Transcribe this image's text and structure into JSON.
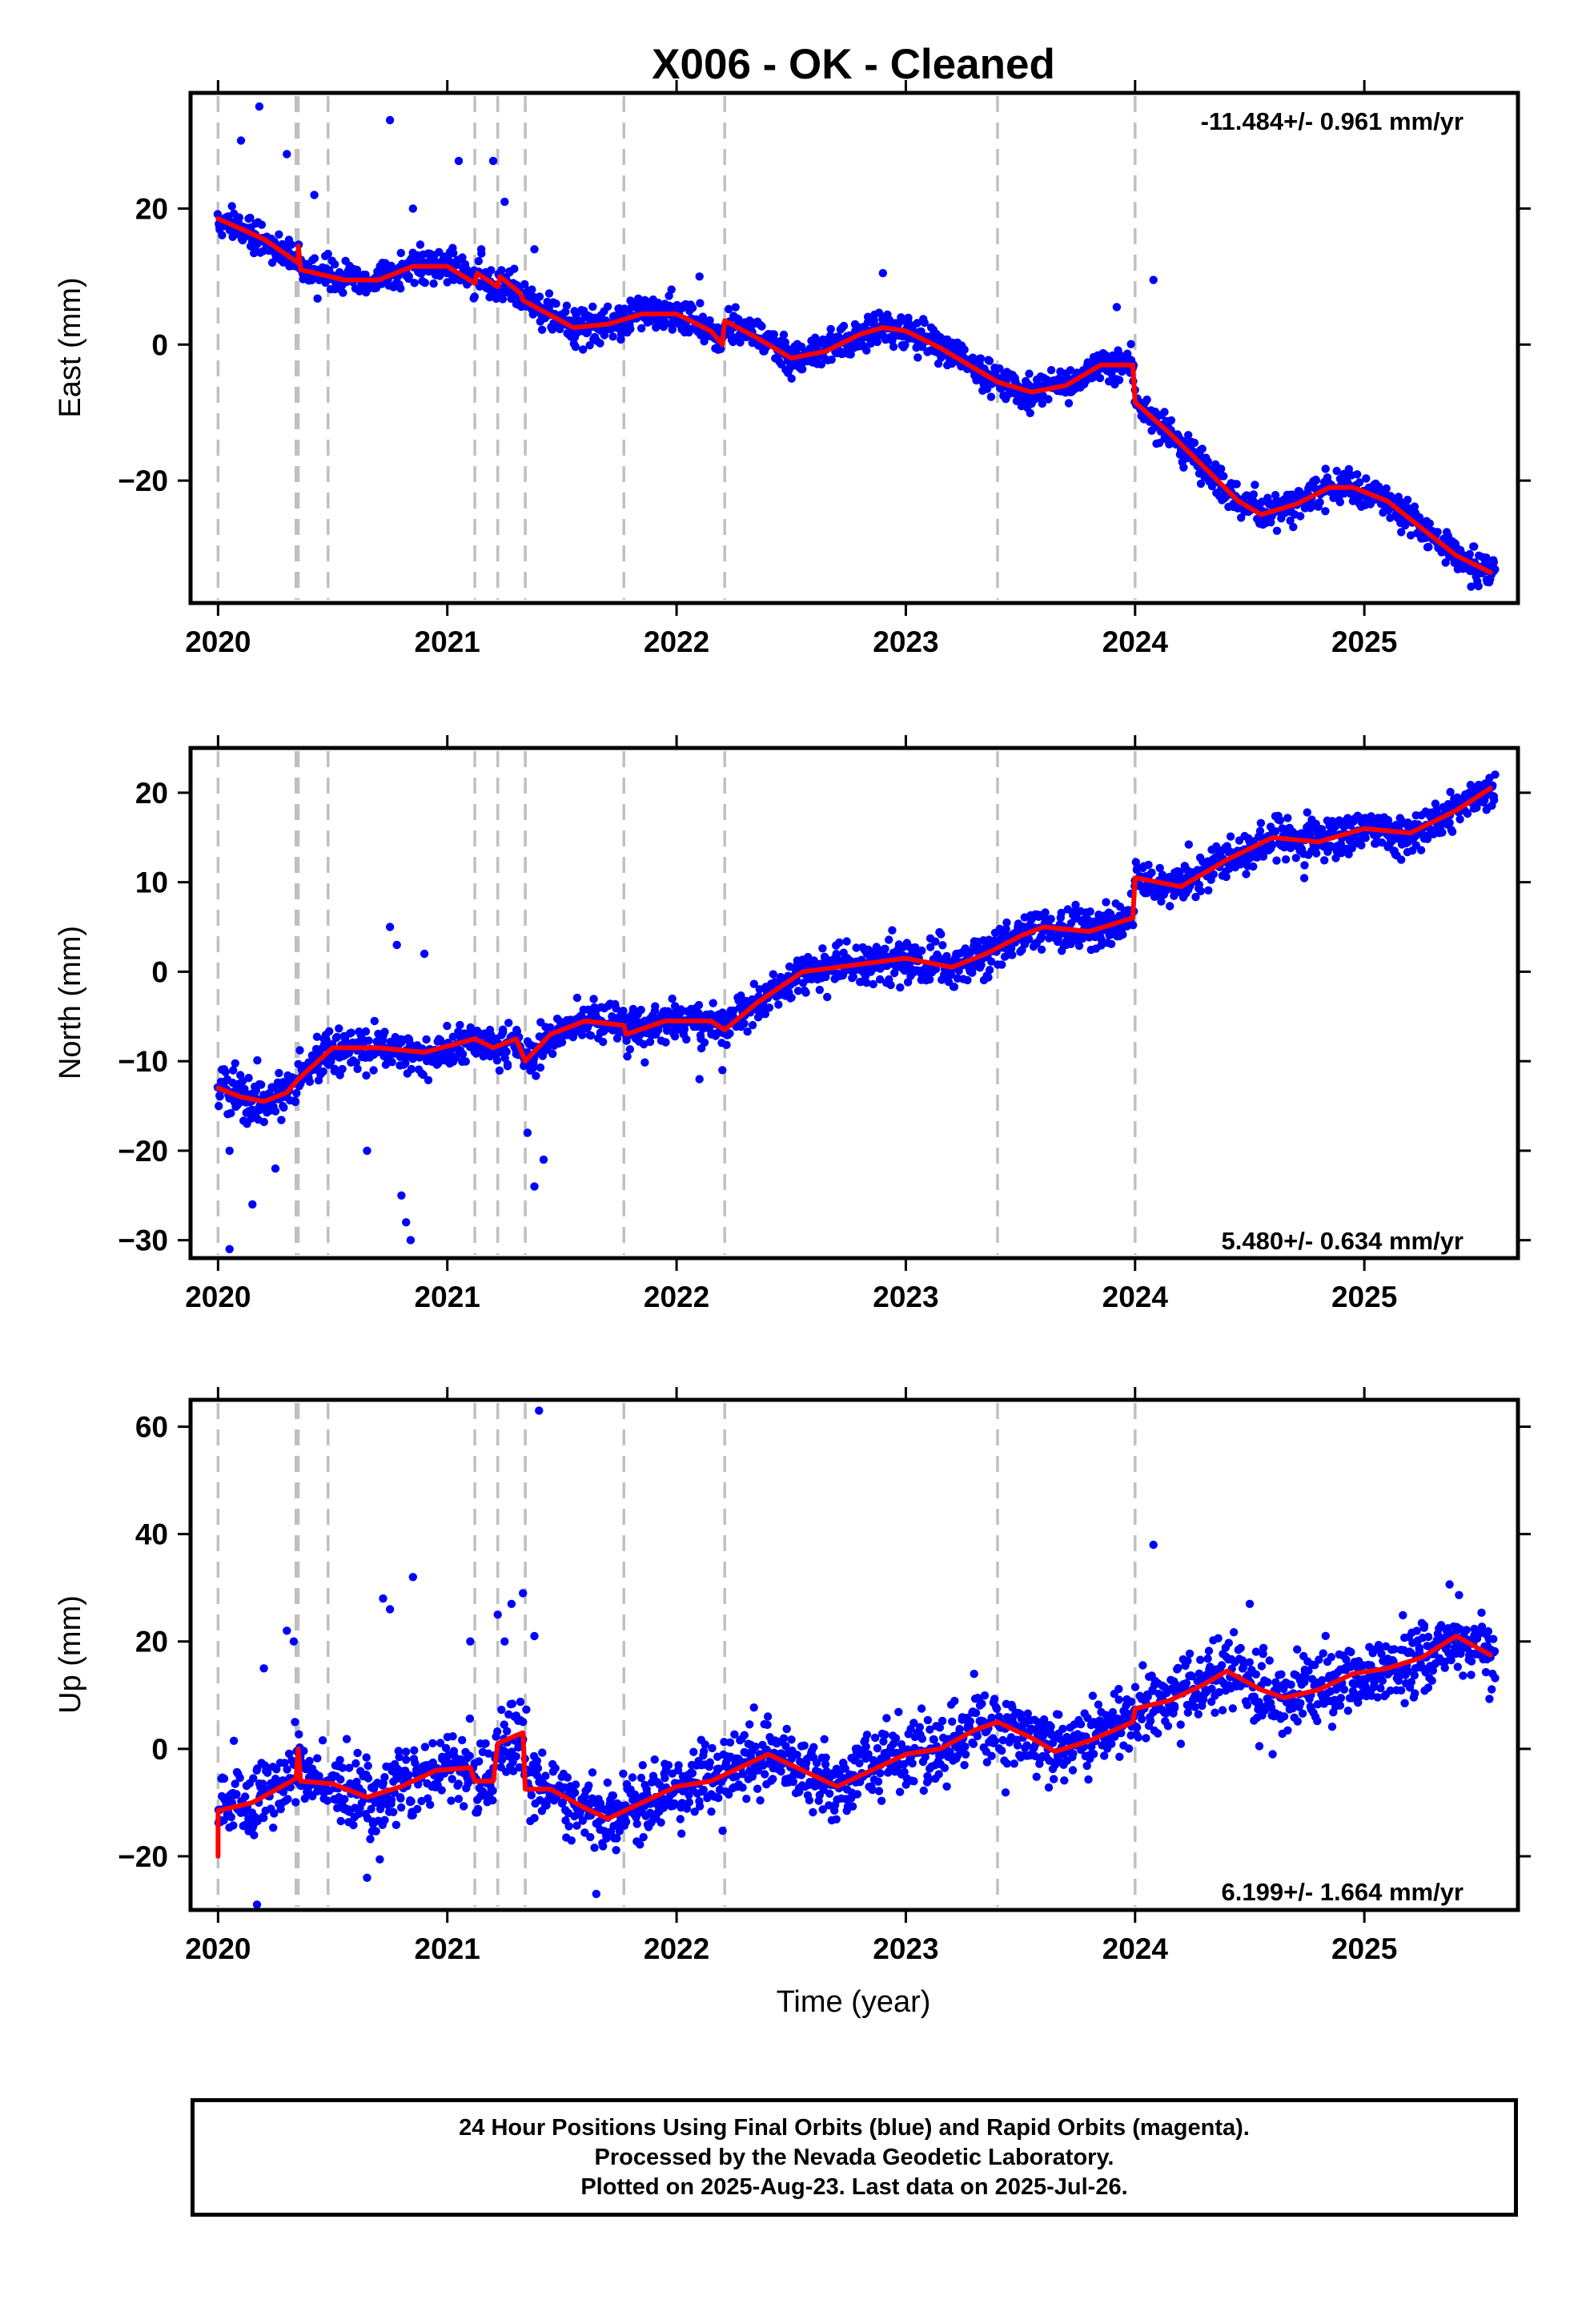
{
  "title": "X006  - OK - Cleaned",
  "chart_data": [
    {
      "type": "scatter",
      "component": "east",
      "ylabel": "East (mm)",
      "xlabel": "",
      "xlim": [
        2019.88,
        2025.67
      ],
      "ylim": [
        -38,
        37
      ],
      "xticks": [
        2020,
        2021,
        2022,
        2023,
        2024,
        2025
      ],
      "yticks": [
        -20,
        0,
        20
      ],
      "rate_label": "-11.484+/- 0.961 mm/yr",
      "rate_position": "top-right",
      "colors": {
        "points": "#0000ff",
        "model": "#ff0000",
        "breaks": "#c0c0c0"
      },
      "model": [
        [
          2020.0,
          18.5
        ],
        [
          2020.2,
          15.5
        ],
        [
          2020.35,
          12
        ],
        [
          2020.35,
          14.5
        ],
        [
          2020.36,
          11
        ],
        [
          2020.55,
          9.5
        ],
        [
          2020.7,
          9.5
        ],
        [
          2020.85,
          11.5
        ],
        [
          2021.0,
          11.5
        ],
        [
          2021.12,
          9
        ],
        [
          2021.13,
          10.5
        ],
        [
          2021.22,
          8.5
        ],
        [
          2021.23,
          10
        ],
        [
          2021.32,
          7.5
        ],
        [
          2021.33,
          6.5
        ],
        [
          2021.55,
          2.5
        ],
        [
          2021.7,
          3
        ],
        [
          2021.85,
          4.5
        ],
        [
          2022.0,
          4.5
        ],
        [
          2022.15,
          2
        ],
        [
          2022.2,
          0
        ],
        [
          2022.21,
          3.5
        ],
        [
          2022.35,
          1
        ],
        [
          2022.5,
          -2
        ],
        [
          2022.65,
          -1
        ],
        [
          2022.8,
          1.5
        ],
        [
          2022.9,
          2.5
        ],
        [
          2023.0,
          2
        ],
        [
          2023.15,
          -0.5
        ],
        [
          2023.3,
          -3.5
        ],
        [
          2023.4,
          -5.5
        ],
        [
          2023.55,
          -7
        ],
        [
          2023.7,
          -6
        ],
        [
          2023.85,
          -3
        ],
        [
          2023.99,
          -3
        ],
        [
          2024.0,
          -8.5
        ],
        [
          2024.15,
          -13
        ],
        [
          2024.3,
          -18
        ],
        [
          2024.45,
          -23
        ],
        [
          2024.55,
          -25
        ],
        [
          2024.7,
          -23.5
        ],
        [
          2024.85,
          -21
        ],
        [
          2024.95,
          -21
        ],
        [
          2025.1,
          -23
        ],
        [
          2025.25,
          -27
        ],
        [
          2025.4,
          -31
        ],
        [
          2025.55,
          -33.5
        ]
      ],
      "data_points": {
        "seed": 101,
        "n": 1900,
        "scatter_sd": 1.2,
        "outliers": [
          [
            2020.1,
            30
          ],
          [
            2020.18,
            35
          ],
          [
            2020.3,
            28
          ],
          [
            2020.42,
            22
          ],
          [
            2020.75,
            33
          ],
          [
            2020.85,
            20
          ],
          [
            2021.05,
            27
          ],
          [
            2021.2,
            27
          ],
          [
            2021.25,
            21
          ],
          [
            2021.38,
            14
          ],
          [
            2022.1,
            10
          ],
          [
            2022.9,
            10.5
          ],
          [
            2024.08,
            9.5
          ],
          [
            2023.92,
            5.5
          ]
        ]
      },
      "breaks": [
        2020.0,
        2020.34,
        2020.35,
        2020.48,
        2021.12,
        2021.22,
        2021.34,
        2021.77,
        2022.21,
        2023.4,
        2024.0
      ]
    },
    {
      "type": "scatter",
      "component": "north",
      "ylabel": "North (mm)",
      "xlabel": "",
      "xlim": [
        2019.88,
        2025.67
      ],
      "ylim": [
        -32,
        25
      ],
      "xticks": [
        2020,
        2021,
        2022,
        2023,
        2024,
        2025
      ],
      "yticks": [
        -30,
        -20,
        -10,
        0,
        10,
        20
      ],
      "rate_label": "5.480+/- 0.634 mm/yr",
      "rate_position": "bottom-right",
      "colors": {
        "points": "#0000ff",
        "model": "#ff0000",
        "breaks": "#c0c0c0"
      },
      "model": [
        [
          2020.0,
          -13
        ],
        [
          2020.1,
          -14
        ],
        [
          2020.2,
          -14.5
        ],
        [
          2020.3,
          -13.5
        ],
        [
          2020.35,
          -12
        ],
        [
          2020.5,
          -8.5
        ],
        [
          2020.7,
          -8.5
        ],
        [
          2020.9,
          -9
        ],
        [
          2021.12,
          -7.5
        ],
        [
          2021.2,
          -8.5
        ],
        [
          2021.3,
          -7.5
        ],
        [
          2021.34,
          -10
        ],
        [
          2021.45,
          -7
        ],
        [
          2021.6,
          -5.5
        ],
        [
          2021.77,
          -6
        ],
        [
          2021.78,
          -7
        ],
        [
          2021.95,
          -5.5
        ],
        [
          2022.15,
          -5.5
        ],
        [
          2022.21,
          -6.5
        ],
        [
          2022.35,
          -3.5
        ],
        [
          2022.55,
          0
        ],
        [
          2022.7,
          0.5
        ],
        [
          2022.85,
          1
        ],
        [
          2023.0,
          1.5
        ],
        [
          2023.2,
          0.5
        ],
        [
          2023.35,
          2
        ],
        [
          2023.5,
          4
        ],
        [
          2023.6,
          5
        ],
        [
          2023.8,
          4.5
        ],
        [
          2023.99,
          6
        ],
        [
          2024.0,
          10.5
        ],
        [
          2024.2,
          9.5
        ],
        [
          2024.4,
          12.5
        ],
        [
          2024.6,
          15
        ],
        [
          2024.8,
          14.5
        ],
        [
          2025.0,
          16
        ],
        [
          2025.2,
          15.5
        ],
        [
          2025.4,
          18
        ],
        [
          2025.55,
          20.5
        ]
      ],
      "data_points": {
        "seed": 202,
        "n": 1900,
        "scatter_sd": 1.1,
        "outliers": [
          [
            2020.05,
            -20
          ],
          [
            2020.15,
            -26
          ],
          [
            2020.05,
            -31
          ],
          [
            2020.25,
            -22
          ],
          [
            2020.65,
            -20
          ],
          [
            2020.75,
            5
          ],
          [
            2020.78,
            3
          ],
          [
            2020.8,
            -25
          ],
          [
            2020.82,
            -28
          ],
          [
            2020.84,
            -30
          ],
          [
            2020.9,
            2
          ],
          [
            2021.35,
            -18
          ],
          [
            2021.42,
            -21
          ],
          [
            2021.38,
            -24
          ],
          [
            2022.1,
            -12
          ],
          [
            2022.2,
            -11
          ]
        ]
      },
      "breaks": [
        2020.0,
        2020.34,
        2020.35,
        2020.48,
        2021.12,
        2021.22,
        2021.34,
        2021.77,
        2022.21,
        2023.4,
        2024.0
      ]
    },
    {
      "type": "scatter",
      "component": "up",
      "ylabel": "Up (mm)",
      "xlabel": "Time (year)",
      "xlim": [
        2019.88,
        2025.67
      ],
      "ylim": [
        -30,
        65
      ],
      "xticks": [
        2020,
        2021,
        2022,
        2023,
        2024,
        2025
      ],
      "yticks": [
        -20,
        0,
        20,
        40,
        60
      ],
      "rate_label": "6.199+/- 1.664 mm/yr",
      "rate_position": "bottom-right",
      "colors": {
        "points": "#0000ff",
        "model": "#ff0000",
        "breaks": "#c0c0c0"
      },
      "model": [
        [
          2020.0,
          -20
        ],
        [
          2020.0,
          -11.5
        ],
        [
          2020.15,
          -10
        ],
        [
          2020.3,
          -6.5
        ],
        [
          2020.34,
          -5.5
        ],
        [
          2020.35,
          0
        ],
        [
          2020.36,
          -6
        ],
        [
          2020.5,
          -6.5
        ],
        [
          2020.65,
          -9
        ],
        [
          2020.8,
          -7
        ],
        [
          2020.95,
          -4
        ],
        [
          2021.1,
          -3.5
        ],
        [
          2021.12,
          -6
        ],
        [
          2021.2,
          -6
        ],
        [
          2021.22,
          1
        ],
        [
          2021.3,
          2.5
        ],
        [
          2021.33,
          3
        ],
        [
          2021.34,
          -7.5
        ],
        [
          2021.45,
          -7.5
        ],
        [
          2021.6,
          -11
        ],
        [
          2021.7,
          -13
        ],
        [
          2021.85,
          -10
        ],
        [
          2022.0,
          -7
        ],
        [
          2022.15,
          -6
        ],
        [
          2022.3,
          -3
        ],
        [
          2022.4,
          -1
        ],
        [
          2022.55,
          -4
        ],
        [
          2022.7,
          -7
        ],
        [
          2022.85,
          -4
        ],
        [
          2023.0,
          -1
        ],
        [
          2023.15,
          0
        ],
        [
          2023.3,
          3.5
        ],
        [
          2023.4,
          5
        ],
        [
          2023.55,
          2
        ],
        [
          2023.65,
          -0.5
        ],
        [
          2023.8,
          1.5
        ],
        [
          2023.99,
          5
        ],
        [
          2024.0,
          7.5
        ],
        [
          2024.15,
          9
        ],
        [
          2024.3,
          12
        ],
        [
          2024.4,
          14.5
        ],
        [
          2024.55,
          11
        ],
        [
          2024.65,
          9.5
        ],
        [
          2024.8,
          11
        ],
        [
          2024.95,
          14
        ],
        [
          2025.1,
          15
        ],
        [
          2025.25,
          17
        ],
        [
          2025.4,
          21
        ],
        [
          2025.55,
          17.5
        ]
      ],
      "data_points": {
        "seed": 303,
        "n": 1900,
        "scatter_sd": 3.2,
        "outliers": [
          [
            2020.2,
            15
          ],
          [
            2020.3,
            22
          ],
          [
            2020.33,
            20
          ],
          [
            2020.72,
            28
          ],
          [
            2020.75,
            26
          ],
          [
            2020.85,
            32
          ],
          [
            2020.65,
            -24
          ],
          [
            2021.1,
            20
          ],
          [
            2021.22,
            25
          ],
          [
            2021.28,
            27
          ],
          [
            2021.33,
            29
          ],
          [
            2021.38,
            21
          ],
          [
            2021.4,
            63
          ],
          [
            2021.65,
            -27
          ],
          [
            2024.08,
            38
          ],
          [
            2024.5,
            27
          ],
          [
            2024.6,
            -1
          ],
          [
            2020.17,
            -29
          ],
          [
            2021.25,
            20
          ]
        ]
      },
      "breaks": [
        2020.0,
        2020.34,
        2020.35,
        2020.48,
        2021.12,
        2021.22,
        2021.34,
        2021.77,
        2022.21,
        2023.4,
        2024.0
      ]
    }
  ],
  "footer": {
    "line1": "24 Hour Positions Using Final Orbits (blue) and Rapid Orbits (magenta).",
    "line2": "Processed by the Nevada Geodetic Laboratory.",
    "line3": "Plotted on 2025-Aug-23. Last data on 2025-Jul-26."
  }
}
